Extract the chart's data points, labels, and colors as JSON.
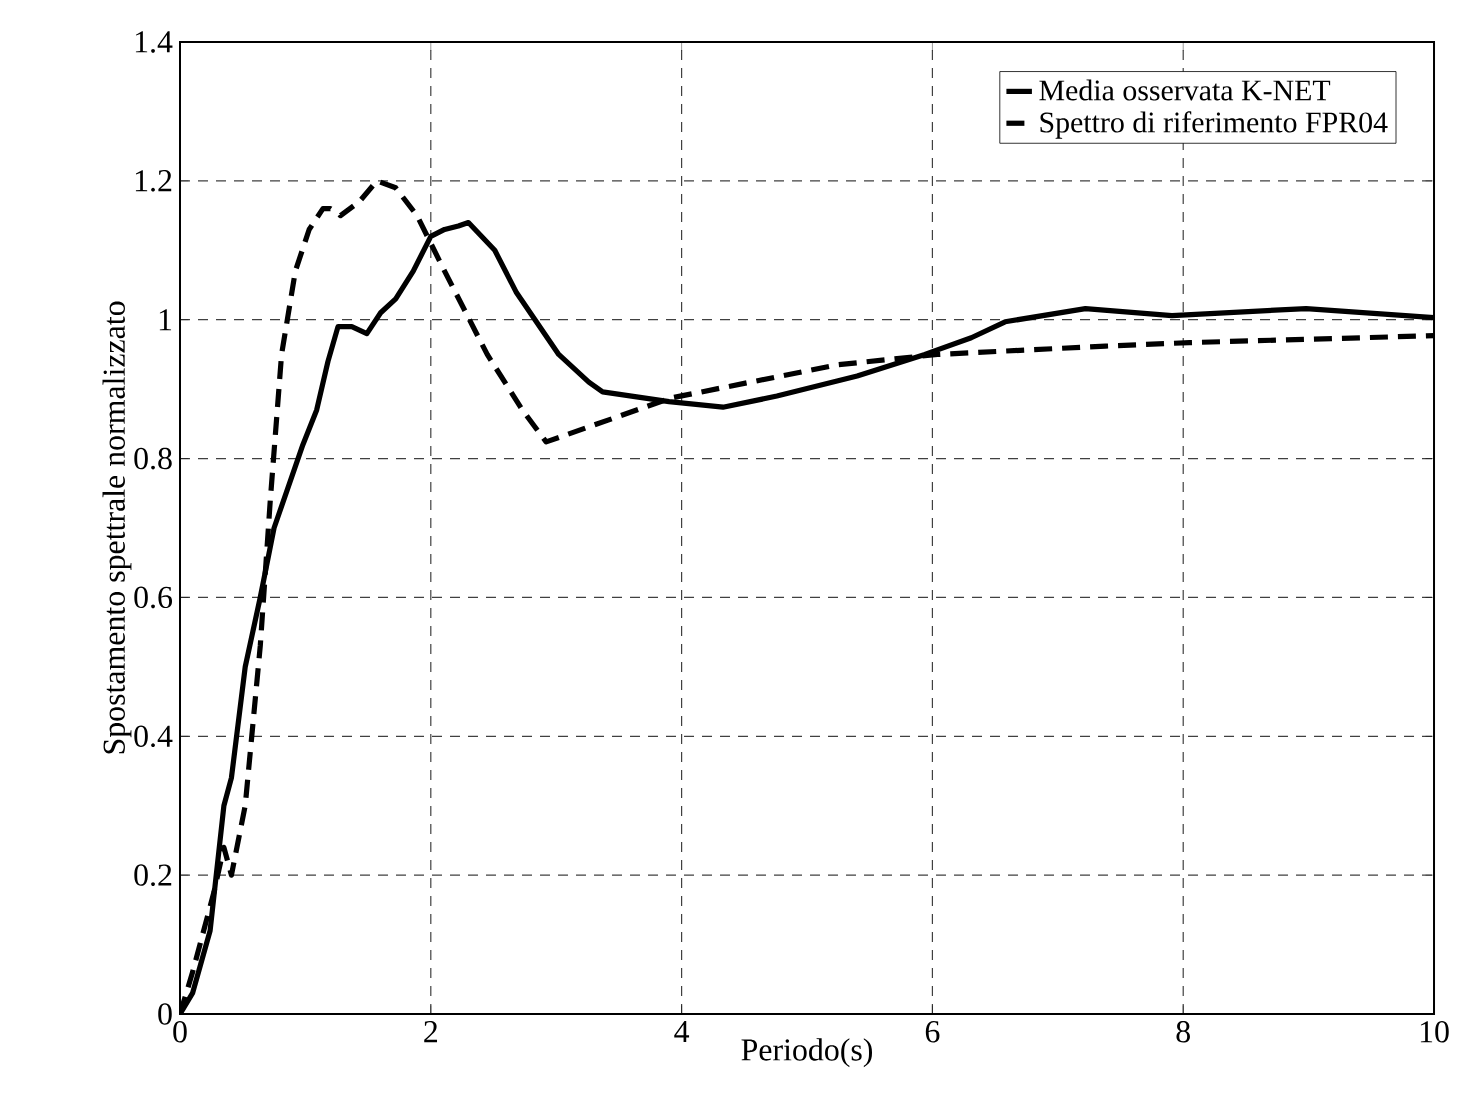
{
  "chart_data": {
    "type": "line",
    "xlabel": "Periodo(s)",
    "ylabel": "Spostamento  spettrale normalizzato",
    "xlim": [
      0,
      10
    ],
    "ylim": [
      0,
      1.4
    ],
    "xticks": [
      0,
      2,
      4,
      6,
      8,
      10
    ],
    "yticks": [
      0,
      0.2,
      0.4,
      0.6,
      0.8,
      1,
      1.2,
      1.4
    ],
    "grid": true,
    "legend": "top right",
    "series": [
      {
        "name": "Media osservata K-NET",
        "color": "#000000",
        "line_style": "solid",
        "x": [
          0,
          0.1,
          0.24,
          0.35,
          0.41,
          0.52,
          0.64,
          0.75,
          0.98,
          1.09,
          1.18,
          1.26,
          1.37,
          1.49,
          1.6,
          1.72,
          1.86,
          2.0,
          2.11,
          2.22,
          2.3,
          2.51,
          2.68,
          3.02,
          3.26,
          3.37,
          3.9,
          4.33,
          4.76,
          5.4,
          5.94,
          6.31,
          6.58,
          7.22,
          7.91,
          8.98,
          10
        ],
        "values": [
          0,
          0.03,
          0.12,
          0.3,
          0.34,
          0.5,
          0.6,
          0.7,
          0.82,
          0.87,
          0.94,
          0.99,
          0.99,
          0.98,
          1.01,
          1.03,
          1.07,
          1.12,
          1.13,
          1.135,
          1.14,
          1.1,
          1.04,
          0.95,
          0.91,
          0.896,
          0.882,
          0.874,
          0.89,
          0.919,
          0.95,
          0.974,
          0.997,
          1.016,
          1.006,
          1.016,
          1.003
        ]
      },
      {
        "name": "Spettro di riferimento FPR04",
        "color": "#000000",
        "line_style": "dashed",
        "x": [
          0,
          0.1,
          0.27,
          0.35,
          0.41,
          0.52,
          0.64,
          0.72,
          0.81,
          0.92,
          1.03,
          1.14,
          1.2,
          1.28,
          1.43,
          1.57,
          1.72,
          1.89,
          2.11,
          2.45,
          2.73,
          2.92,
          3.91,
          5.24,
          6.04,
          7.38,
          8.05,
          10
        ],
        "values": [
          0,
          0.06,
          0.175,
          0.24,
          0.2,
          0.3,
          0.53,
          0.74,
          0.95,
          1.07,
          1.13,
          1.16,
          1.16,
          1.15,
          1.17,
          1.2,
          1.19,
          1.15,
          1.07,
          0.95,
          0.87,
          0.824,
          0.887,
          0.935,
          0.95,
          0.962,
          0.967,
          0.977
        ]
      }
    ]
  }
}
